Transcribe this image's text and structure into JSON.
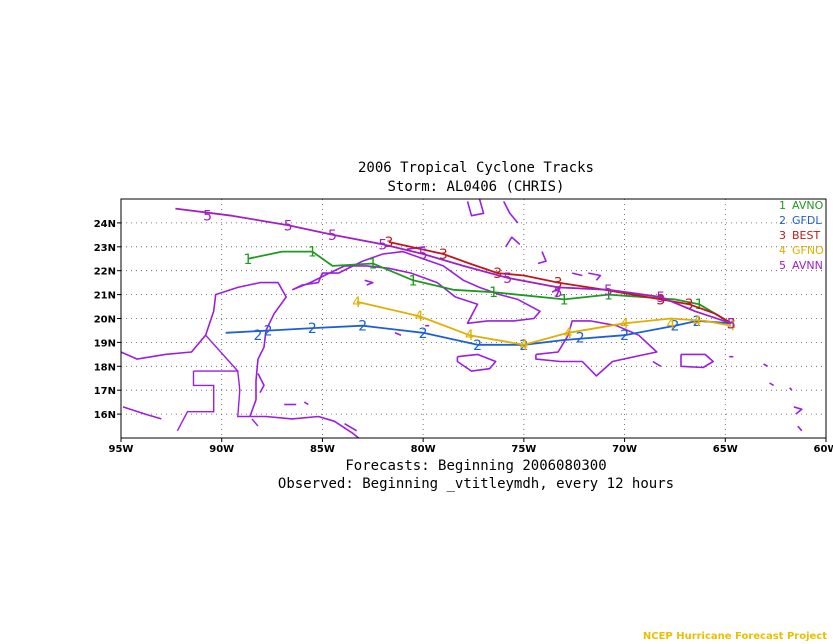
{
  "title_line1": "2006 Tropical Cyclone Tracks",
  "title_line2": "Storm: AL0406 (CHRIS)",
  "footer_line1": "Forecasts: Beginning 2006080300",
  "footer_line2": "Observed: Beginning _vtitleymdh, every 12 hours",
  "credit": "NCEP Hurricane Forecast Project",
  "colors": {
    "land": "#9a1fe0",
    "grid": "#555555"
  },
  "chart_data": {
    "type": "line",
    "xlim": [
      -95,
      -60
    ],
    "ylim": [
      15,
      25
    ],
    "x_ticks": [
      {
        "value": -95,
        "label": "95W"
      },
      {
        "value": -90,
        "label": "90W"
      },
      {
        "value": -85,
        "label": "85W"
      },
      {
        "value": -80,
        "label": "80W"
      },
      {
        "value": -75,
        "label": "75W"
      },
      {
        "value": -70,
        "label": "70W"
      },
      {
        "value": -65,
        "label": "65W"
      },
      {
        "value": -60,
        "label": "60W"
      }
    ],
    "y_ticks": [
      {
        "value": 16,
        "label": "16N"
      },
      {
        "value": 17,
        "label": "17N"
      },
      {
        "value": 18,
        "label": "18N"
      },
      {
        "value": 19,
        "label": "19N"
      },
      {
        "value": 20,
        "label": "20N"
      },
      {
        "value": 21,
        "label": "21N"
      },
      {
        "value": 22,
        "label": "22N"
      },
      {
        "value": 23,
        "label": "23N"
      },
      {
        "value": 24,
        "label": "24N"
      }
    ],
    "grid": true,
    "legend_position": "top-right",
    "series": [
      {
        "id": "1",
        "name": "AVNO",
        "color": "#1f9a1f",
        "points": [
          [
            -64.7,
            19.8
          ],
          [
            -66.3,
            20.6
          ],
          [
            -67.5,
            20.8
          ],
          [
            -70.8,
            21.0
          ],
          [
            -73.0,
            20.8
          ],
          [
            -76.5,
            21.1
          ],
          [
            -78.5,
            21.2
          ],
          [
            -80.5,
            21.6
          ],
          [
            -82.5,
            22.3
          ],
          [
            -84.5,
            22.2
          ],
          [
            -85.5,
            22.8
          ],
          [
            -87.0,
            22.8
          ],
          [
            -88.7,
            22.5
          ]
        ],
        "markers": [
          [
            -66.3,
            20.6
          ],
          [
            -70.8,
            21.0
          ],
          [
            -73.0,
            20.8
          ],
          [
            -76.5,
            21.1
          ],
          [
            -80.5,
            21.6
          ],
          [
            -82.5,
            22.3
          ],
          [
            -85.5,
            22.8
          ],
          [
            -88.7,
            22.5
          ]
        ]
      },
      {
        "id": "2",
        "name": "GFDL",
        "color": "#1d5fd6",
        "points": [
          [
            -64.7,
            19.8
          ],
          [
            -66.4,
            19.9
          ],
          [
            -67.5,
            19.7
          ],
          [
            -70.0,
            19.3
          ],
          [
            -73.0,
            19.1
          ],
          [
            -75.0,
            18.9
          ],
          [
            -77.3,
            18.9
          ],
          [
            -80.0,
            19.4
          ],
          [
            -83.0,
            19.7
          ],
          [
            -85.5,
            19.6
          ],
          [
            -87.5,
            19.5
          ],
          [
            -89.8,
            19.4
          ]
        ],
        "markers": [
          [
            -66.4,
            19.9
          ],
          [
            -67.5,
            19.7
          ],
          [
            -70.0,
            19.3
          ],
          [
            -72.2,
            19.2
          ],
          [
            -75.0,
            18.9
          ],
          [
            -77.3,
            18.9
          ],
          [
            -80.0,
            19.4
          ],
          [
            -83.0,
            19.7
          ],
          [
            -85.5,
            19.6
          ],
          [
            -87.7,
            19.5
          ],
          [
            -88.2,
            19.3
          ]
        ]
      },
      {
        "id": "3",
        "name": "BEST",
        "color": "#c01818",
        "points": [
          [
            -64.7,
            19.8
          ],
          [
            -65.5,
            20.2
          ],
          [
            -66.8,
            20.6
          ],
          [
            -68.2,
            20.8
          ],
          [
            -71.0,
            21.2
          ],
          [
            -73.3,
            21.5
          ],
          [
            -75.0,
            21.8
          ],
          [
            -76.3,
            21.9
          ],
          [
            -77.7,
            22.3
          ],
          [
            -79.0,
            22.7
          ],
          [
            -81.7,
            23.2
          ]
        ],
        "markers": [
          [
            -64.7,
            19.8
          ],
          [
            -66.8,
            20.6
          ],
          [
            -68.2,
            20.8
          ],
          [
            -73.3,
            21.5
          ],
          [
            -76.3,
            21.9
          ],
          [
            -79.0,
            22.7
          ],
          [
            -81.7,
            23.2
          ]
        ]
      },
      {
        "id": "4",
        "name": "GFNO",
        "color": "#e0b000",
        "points": [
          [
            -64.7,
            19.7
          ],
          [
            -66.0,
            19.9
          ],
          [
            -67.7,
            20.0
          ],
          [
            -70.0,
            19.8
          ],
          [
            -72.8,
            19.4
          ],
          [
            -75.0,
            18.9
          ],
          [
            -77.7,
            19.3
          ],
          [
            -80.2,
            20.1
          ],
          [
            -83.3,
            20.7
          ]
        ],
        "markers": [
          [
            -64.7,
            19.7
          ],
          [
            -66.4,
            19.9
          ],
          [
            -67.7,
            19.8
          ],
          [
            -70.0,
            19.8
          ],
          [
            -72.8,
            19.4
          ],
          [
            -75.0,
            18.9
          ],
          [
            -77.7,
            19.3
          ],
          [
            -80.2,
            20.1
          ],
          [
            -83.3,
            20.7
          ]
        ]
      },
      {
        "id": "5",
        "name": "AVNN",
        "color": "#a020c0",
        "points": [
          [
            -64.7,
            19.8
          ],
          [
            -66.5,
            20.3
          ],
          [
            -68.2,
            20.9
          ],
          [
            -70.8,
            21.2
          ],
          [
            -73.3,
            21.3
          ],
          [
            -75.8,
            21.7
          ],
          [
            -78.0,
            22.2
          ],
          [
            -80.0,
            22.7
          ],
          [
            -82.0,
            23.1
          ],
          [
            -84.5,
            23.5
          ],
          [
            -86.7,
            23.9
          ],
          [
            -89.5,
            24.3
          ],
          [
            -92.3,
            24.6
          ]
        ],
        "markers": [
          [
            -64.7,
            19.8
          ],
          [
            -68.2,
            20.9
          ],
          [
            -70.8,
            21.2
          ],
          [
            -73.3,
            21.1
          ],
          [
            -75.8,
            21.7
          ],
          [
            -80.0,
            22.7
          ],
          [
            -82.0,
            23.1
          ],
          [
            -84.5,
            23.5
          ],
          [
            -86.7,
            23.9
          ],
          [
            -90.7,
            24.3
          ]
        ]
      }
    ]
  },
  "coastlines": [
    [
      [
        -95.0,
        18.6
      ],
      [
        -94.2,
        18.3
      ],
      [
        -92.8,
        18.5
      ],
      [
        -91.5,
        18.6
      ],
      [
        -90.8,
        19.3
      ],
      [
        -90.4,
        20.3
      ],
      [
        -90.3,
        21.0
      ],
      [
        -89.2,
        21.3
      ],
      [
        -88.1,
        21.5
      ],
      [
        -87.2,
        21.5
      ],
      [
        -86.8,
        20.9
      ],
      [
        -87.4,
        20.2
      ],
      [
        -87.8,
        19.5
      ],
      [
        -87.9,
        18.8
      ],
      [
        -88.2,
        18.3
      ],
      [
        -88.3,
        17.4
      ],
      [
        -88.3,
        16.6
      ],
      [
        -88.6,
        15.9
      ],
      [
        -87.8,
        15.9
      ],
      [
        -86.5,
        15.8
      ],
      [
        -85.2,
        15.9
      ],
      [
        -84.4,
        15.7
      ],
      [
        -83.5,
        15.2
      ],
      [
        -83.2,
        15.0
      ]
    ],
    [
      [
        -86.5,
        21.2
      ],
      [
        -86.0,
        21.4
      ],
      [
        -85.2,
        21.5
      ],
      [
        -85.0,
        21.9
      ],
      [
        -84.2,
        21.9
      ],
      [
        -83.0,
        22.4
      ],
      [
        -82.0,
        22.7
      ],
      [
        -81.0,
        22.8
      ],
      [
        -80.0,
        22.5
      ],
      [
        -79.0,
        22.2
      ],
      [
        -78.0,
        21.6
      ],
      [
        -77.2,
        21.3
      ],
      [
        -76.2,
        21.0
      ],
      [
        -75.3,
        20.8
      ],
      [
        -74.2,
        20.3
      ],
      [
        -74.5,
        20.0
      ],
      [
        -75.5,
        19.9
      ],
      [
        -76.8,
        19.9
      ],
      [
        -77.8,
        19.8
      ],
      [
        -77.3,
        20.6
      ],
      [
        -78.4,
        20.9
      ],
      [
        -79.3,
        21.5
      ],
      [
        -80.6,
        21.9
      ],
      [
        -81.7,
        22.1
      ],
      [
        -82.8,
        22.2
      ],
      [
        -83.9,
        22.2
      ],
      [
        -84.9,
        21.8
      ],
      [
        -85.6,
        21.5
      ],
      [
        -86.5,
        21.2
      ]
    ],
    [
      [
        -78.3,
        18.4
      ],
      [
        -77.3,
        18.5
      ],
      [
        -76.4,
        18.2
      ],
      [
        -76.7,
        17.9
      ],
      [
        -77.6,
        17.8
      ],
      [
        -78.3,
        18.2
      ],
      [
        -78.3,
        18.4
      ]
    ],
    [
      [
        -74.4,
        18.5
      ],
      [
        -73.3,
        18.6
      ],
      [
        -72.8,
        19.3
      ],
      [
        -72.6,
        19.9
      ],
      [
        -71.7,
        19.9
      ],
      [
        -70.4,
        19.7
      ],
      [
        -69.3,
        19.3
      ],
      [
        -68.4,
        18.6
      ],
      [
        -69.5,
        18.4
      ],
      [
        -70.6,
        18.2
      ],
      [
        -71.4,
        17.6
      ],
      [
        -72.1,
        18.2
      ],
      [
        -73.2,
        18.2
      ],
      [
        -74.4,
        18.3
      ],
      [
        -74.4,
        18.5
      ]
    ],
    [
      [
        -67.2,
        18.5
      ],
      [
        -66.0,
        18.5
      ],
      [
        -65.6,
        18.2
      ],
      [
        -66.1,
        17.95
      ],
      [
        -67.2,
        18.0
      ],
      [
        -67.2,
        18.5
      ]
    ],
    [
      [
        -77.8,
        24.9
      ],
      [
        -77.6,
        24.3
      ],
      [
        -77.0,
        24.4
      ],
      [
        -77.2,
        25.0
      ]
    ],
    [
      [
        -76.0,
        24.9
      ],
      [
        -75.7,
        24.4
      ],
      [
        -75.3,
        24.0
      ]
    ],
    [
      [
        -75.9,
        23.0
      ],
      [
        -75.6,
        23.4
      ],
      [
        -75.2,
        23.1
      ]
    ],
    [
      [
        -74.1,
        22.8
      ],
      [
        -73.9,
        22.4
      ],
      [
        -74.3,
        22.3
      ]
    ],
    [
      [
        -73.6,
        21.1
      ],
      [
        -73.2,
        21.3
      ],
      [
        -73.4,
        20.9
      ]
    ],
    [
      [
        -72.6,
        21.9
      ],
      [
        -72.1,
        21.8
      ]
    ],
    [
      [
        -71.8,
        21.9
      ],
      [
        -71.2,
        21.8
      ],
      [
        -71.4,
        21.6
      ]
    ],
    [
      [
        -80.8,
        22.9
      ],
      [
        -79.9,
        23.0
      ]
    ],
    [
      [
        -82.9,
        21.6
      ],
      [
        -82.5,
        21.5
      ],
      [
        -82.8,
        21.4
      ]
    ],
    [
      [
        -81.4,
        19.4
      ],
      [
        -81.1,
        19.3
      ]
    ],
    [
      [
        -79.9,
        19.7
      ],
      [
        -79.7,
        19.7
      ]
    ],
    [
      [
        -88.2,
        17.7
      ],
      [
        -87.9,
        17.2
      ],
      [
        -88.1,
        16.9
      ]
    ],
    [
      [
        -86.9,
        16.4
      ],
      [
        -86.3,
        16.4
      ]
    ],
    [
      [
        -85.9,
        16.5
      ],
      [
        -85.7,
        16.4
      ]
    ],
    [
      [
        -83.9,
        15.6
      ],
      [
        -83.3,
        15.3
      ]
    ],
    [
      [
        -64.8,
        18.4
      ],
      [
        -64.6,
        18.4
      ]
    ],
    [
      [
        -63.1,
        18.1
      ],
      [
        -62.9,
        18.0
      ]
    ],
    [
      [
        -62.8,
        17.3
      ],
      [
        -62.6,
        17.2
      ]
    ],
    [
      [
        -61.8,
        17.1
      ],
      [
        -61.7,
        17.0
      ]
    ],
    [
      [
        -61.6,
        16.3
      ],
      [
        -61.2,
        16.2
      ],
      [
        -61.5,
        16.0
      ]
    ],
    [
      [
        -61.4,
        15.5
      ],
      [
        -61.2,
        15.3
      ]
    ],
    [
      [
        -68.2,
        18.0
      ],
      [
        -68.6,
        18.2
      ]
    ],
    [
      [
        -94.9,
        16.3
      ],
      [
        -93.8,
        16.0
      ],
      [
        -93.0,
        15.8
      ]
    ]
  ],
  "borders": [
    [
      [
        -90.8,
        19.3
      ],
      [
        -89.2,
        17.8
      ],
      [
        -89.1,
        17.0
      ],
      [
        -89.2,
        15.9
      ],
      [
        -88.6,
        15.9
      ]
    ],
    [
      [
        -91.4,
        17.8
      ],
      [
        -91.4,
        17.2
      ],
      [
        -90.4,
        17.2
      ],
      [
        -90.4,
        16.1
      ],
      [
        -91.7,
        16.1
      ],
      [
        -92.2,
        15.3
      ]
    ],
    [
      [
        -89.2,
        17.8
      ],
      [
        -91.4,
        17.8
      ]
    ],
    [
      [
        -88.5,
        15.8
      ],
      [
        -88.2,
        15.5
      ]
    ]
  ]
}
